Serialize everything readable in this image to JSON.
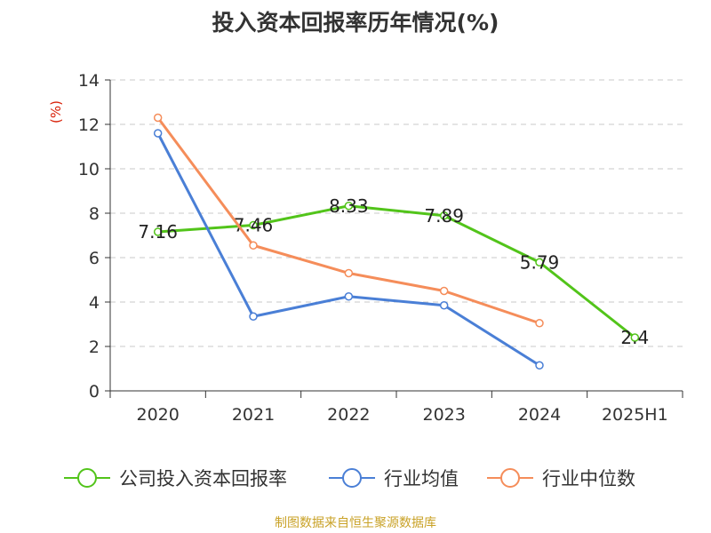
{
  "chart_data": {
    "type": "line",
    "title": "投入资本回报率历年情况(%)",
    "ylabel": "(%)",
    "xlabel": "",
    "categories": [
      "2020",
      "2021",
      "2022",
      "2023",
      "2024",
      "2025H1"
    ],
    "ylim": [
      0,
      14
    ],
    "yticks": [
      0,
      2,
      4,
      6,
      8,
      10,
      12,
      14
    ],
    "grid": true,
    "legend_position": "bottom",
    "series": [
      {
        "name": "公司投入资本回报率",
        "color": "#52c41a",
        "values": [
          7.16,
          7.46,
          8.33,
          7.89,
          5.79,
          2.4
        ],
        "labels": [
          "7.16",
          "7.46",
          "8.33",
          "7.89",
          "5.79",
          "2.4"
        ]
      },
      {
        "name": "行业均值",
        "color": "#4a7fd6",
        "values": [
          11.6,
          3.35,
          4.25,
          3.85,
          1.15,
          null
        ]
      },
      {
        "name": "行业中位数",
        "color": "#f58d5a",
        "values": [
          12.3,
          6.55,
          5.3,
          4.5,
          3.05,
          null
        ]
      }
    ]
  },
  "source": {
    "text": "制图数据来自恒生聚源数据库",
    "color": "#c9a227"
  }
}
